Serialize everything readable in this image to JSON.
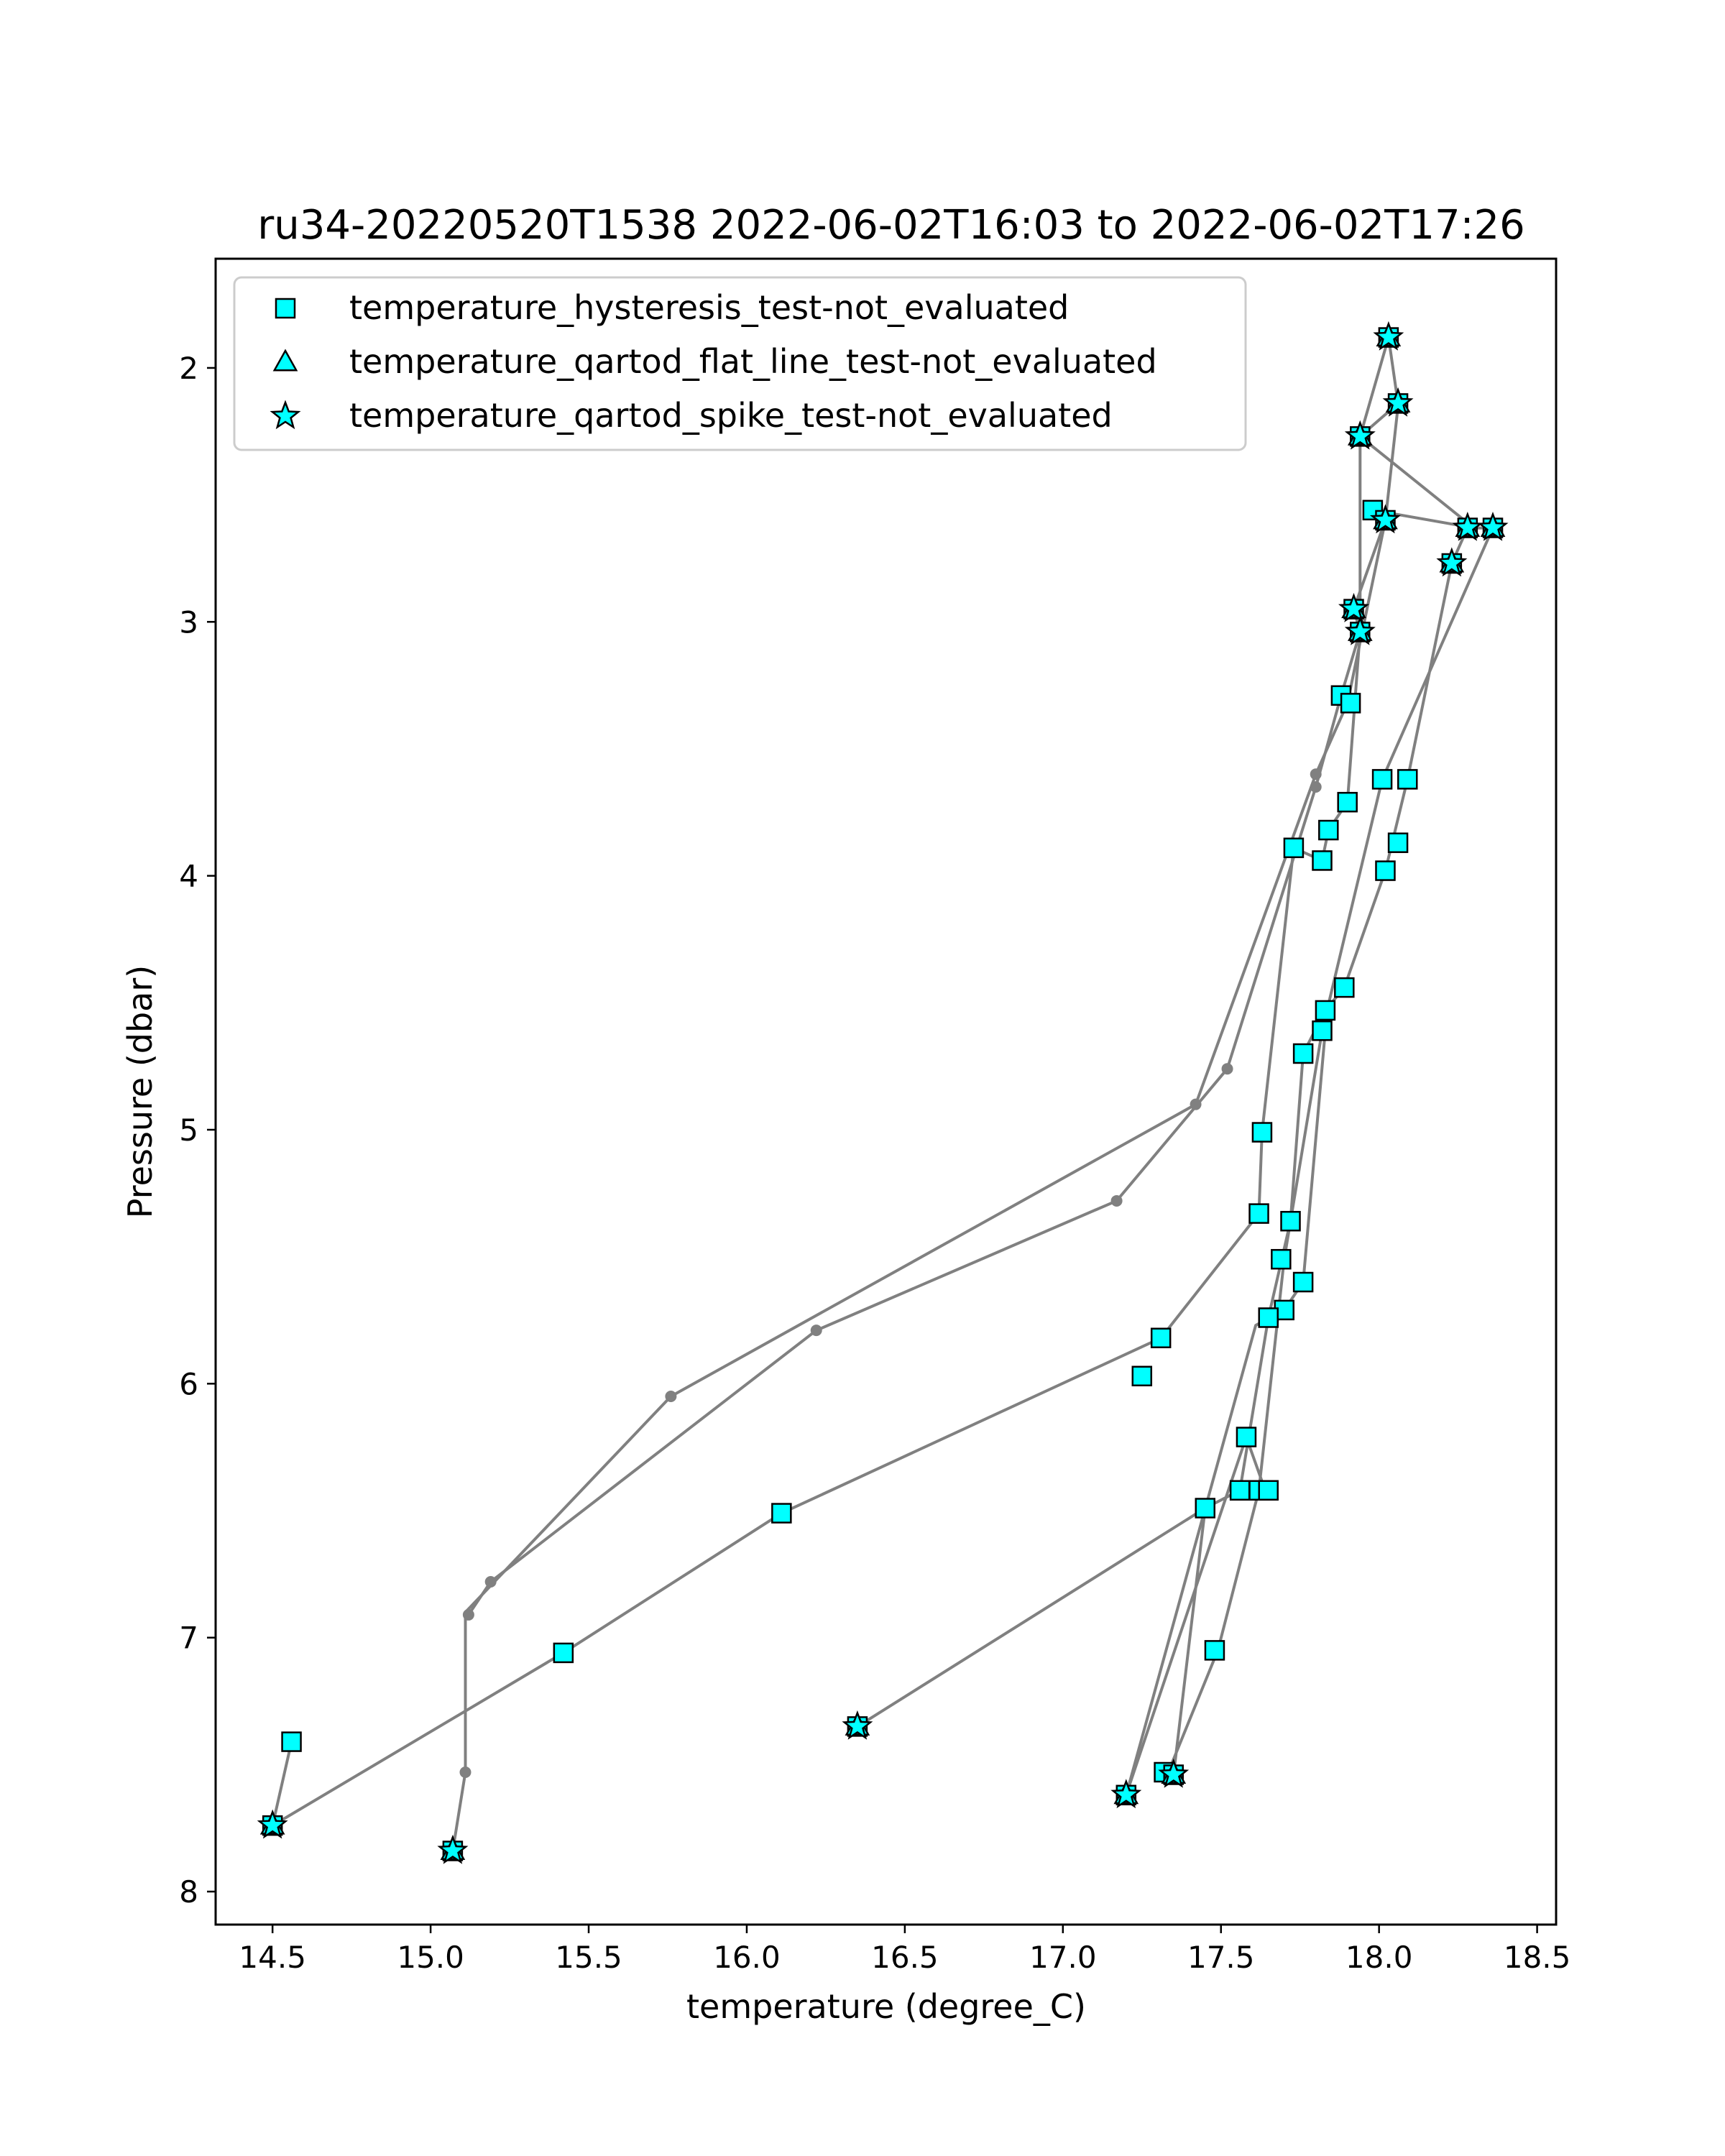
{
  "chart_data": {
    "type": "scatter",
    "title": "ru34-20220520T1538 2022-06-02T16:03 to 2022-06-02T17:26",
    "xlabel": "temperature (degree_C)",
    "ylabel": "Pressure (dbar)",
    "xlim": [
      14.32,
      18.56
    ],
    "ylim": [
      8.13,
      1.57
    ],
    "y_inverted": true,
    "xticks": [
      "14.5",
      "15.0",
      "15.5",
      "16.0",
      "16.5",
      "17.0",
      "17.5",
      "18.0",
      "18.5"
    ],
    "xtick_values": [
      14.5,
      15.0,
      15.5,
      16.0,
      16.5,
      17.0,
      17.5,
      18.0,
      18.5
    ],
    "yticks": [
      "2",
      "3",
      "4",
      "5",
      "6",
      "7",
      "8"
    ],
    "ytick_values": [
      2,
      3,
      4,
      5,
      6,
      7,
      8
    ],
    "grid": false,
    "legend_position": "top-left",
    "colors": {
      "line": "#808080",
      "marker_fill": "#00ffff",
      "marker_edge": "#000000",
      "frame": "#000000"
    },
    "profiles": [
      {
        "points": [
          [
            18.03,
            1.88
          ],
          [
            18.06,
            2.14
          ],
          [
            17.94,
            2.27
          ],
          [
            18.3,
            2.63
          ],
          [
            17.98,
            2.56
          ],
          [
            18.02,
            2.6
          ],
          [
            17.9,
            3.32
          ],
          [
            17.8,
            3.6
          ],
          [
            17.42,
            4.9
          ],
          [
            15.76,
            6.05
          ],
          [
            15.11,
            6.9
          ],
          [
            15.11,
            7.53
          ],
          [
            15.07,
            7.84
          ]
        ]
      },
      {
        "points": [
          [
            17.35,
            7.54
          ],
          [
            17.45,
            6.49
          ],
          [
            17.56,
            6.42
          ],
          [
            17.65,
            5.74
          ],
          [
            17.72,
            5.36
          ],
          [
            17.76,
            4.7
          ],
          [
            17.83,
            4.53
          ],
          [
            17.89,
            4.44
          ],
          [
            18.02,
            3.98
          ],
          [
            18.09,
            3.62
          ],
          [
            18.23,
            2.77
          ],
          [
            18.28,
            2.63
          ],
          [
            18.36,
            2.63
          ],
          [
            18.01,
            3.62
          ],
          [
            17.82,
            4.61
          ],
          [
            17.7,
            5.51
          ],
          [
            17.62,
            6.42
          ],
          [
            17.49,
            7.05
          ],
          [
            17.33,
            7.54
          ]
        ]
      },
      {
        "points": [
          [
            18.06,
            2.15
          ],
          [
            18.02,
            2.6
          ],
          [
            17.92,
            2.95
          ],
          [
            17.94,
            3.04
          ],
          [
            17.88,
            3.29
          ],
          [
            17.8,
            3.65
          ],
          [
            17.52,
            4.76
          ],
          [
            17.17,
            5.28
          ],
          [
            16.22,
            5.79
          ],
          [
            15.19,
            6.78
          ],
          [
            15.12,
            6.91
          ]
        ]
      },
      {
        "points": [
          [
            14.5,
            7.74
          ],
          [
            15.42,
            7.06
          ],
          [
            16.11,
            6.51
          ],
          [
            17.31,
            5.82
          ],
          [
            17.62,
            5.33
          ],
          [
            17.63,
            5.01
          ],
          [
            17.73,
            3.89
          ],
          [
            17.82,
            3.94
          ],
          [
            17.84,
            3.82
          ],
          [
            17.9,
            3.71
          ],
          [
            17.94,
            3.04
          ],
          [
            17.94,
            2.27
          ],
          [
            18.03,
            1.88
          ]
        ]
      },
      {
        "points": [
          [
            14.56,
            7.41
          ],
          [
            14.5,
            7.74
          ]
        ]
      },
      {
        "points": [
          [
            16.35,
            7.35
          ],
          [
            17.45,
            6.49
          ]
        ]
      },
      {
        "points": [
          [
            17.2,
            7.62
          ],
          [
            17.58,
            6.21
          ],
          [
            17.64,
            6.42
          ]
        ]
      },
      {
        "points": [
          [
            17.2,
            7.62
          ],
          [
            17.61,
            5.77
          ],
          [
            17.7,
            5.71
          ],
          [
            17.76,
            5.6
          ],
          [
            17.83,
            4.61
          ]
        ]
      }
    ],
    "series": [
      {
        "name": "temperature_hysteresis_test-not_evaluated",
        "marker": "square",
        "points": [
          [
            14.56,
            7.41
          ],
          [
            14.5,
            7.74
          ],
          [
            15.42,
            7.06
          ],
          [
            16.11,
            6.51
          ],
          [
            17.25,
            5.97
          ],
          [
            17.31,
            5.82
          ],
          [
            17.62,
            5.33
          ],
          [
            17.63,
            5.01
          ],
          [
            17.73,
            3.89
          ],
          [
            17.82,
            3.94
          ],
          [
            17.84,
            3.82
          ],
          [
            17.9,
            3.71
          ],
          [
            17.88,
            3.29
          ],
          [
            17.91,
            3.32
          ],
          [
            17.98,
            2.56
          ],
          [
            18.01,
            3.62
          ],
          [
            18.09,
            3.62
          ],
          [
            18.06,
            3.87
          ],
          [
            18.02,
            3.98
          ],
          [
            17.89,
            4.44
          ],
          [
            17.83,
            4.53
          ],
          [
            17.82,
            4.61
          ],
          [
            17.76,
            4.7
          ],
          [
            17.72,
            5.36
          ],
          [
            17.69,
            5.51
          ],
          [
            17.76,
            5.6
          ],
          [
            17.7,
            5.71
          ],
          [
            17.65,
            5.74
          ],
          [
            17.58,
            6.21
          ],
          [
            17.56,
            6.42
          ],
          [
            17.62,
            6.42
          ],
          [
            17.65,
            6.42
          ],
          [
            17.45,
            6.49
          ],
          [
            17.48,
            7.05
          ],
          [
            17.32,
            7.53
          ],
          [
            17.2,
            7.62
          ],
          [
            17.35,
            7.54
          ],
          [
            16.35,
            7.35
          ],
          [
            15.07,
            7.84
          ],
          [
            18.03,
            1.88
          ],
          [
            18.06,
            2.14
          ],
          [
            17.94,
            2.27
          ],
          [
            18.02,
            2.6
          ],
          [
            18.28,
            2.63
          ],
          [
            18.36,
            2.63
          ],
          [
            18.23,
            2.77
          ],
          [
            17.92,
            2.95
          ],
          [
            17.94,
            3.04
          ]
        ]
      },
      {
        "name": "temperature_qartod_flat_line_test-not_evaluated",
        "marker": "triangle",
        "points": [
          [
            18.03,
            1.88
          ],
          [
            18.06,
            2.14
          ],
          [
            17.94,
            2.27
          ],
          [
            18.02,
            2.6
          ],
          [
            18.28,
            2.63
          ],
          [
            18.36,
            2.63
          ],
          [
            18.23,
            2.77
          ],
          [
            17.92,
            2.95
          ],
          [
            17.94,
            3.04
          ],
          [
            16.35,
            7.35
          ],
          [
            14.5,
            7.74
          ],
          [
            15.07,
            7.84
          ],
          [
            17.2,
            7.62
          ],
          [
            17.35,
            7.54
          ]
        ]
      },
      {
        "name": "temperature_qartod_spike_test-not_evaluated",
        "marker": "star",
        "points": [
          [
            18.03,
            1.88
          ],
          [
            18.06,
            2.14
          ],
          [
            17.94,
            2.27
          ],
          [
            18.02,
            2.6
          ],
          [
            18.28,
            2.63
          ],
          [
            18.36,
            2.63
          ],
          [
            18.23,
            2.77
          ],
          [
            17.92,
            2.95
          ],
          [
            17.94,
            3.04
          ],
          [
            16.35,
            7.35
          ],
          [
            14.5,
            7.74
          ],
          [
            15.07,
            7.84
          ],
          [
            17.2,
            7.62
          ],
          [
            17.35,
            7.54
          ]
        ]
      }
    ],
    "unflagged_points": [
      [
        17.8,
        3.6
      ],
      [
        17.8,
        3.65
      ],
      [
        17.52,
        4.76
      ],
      [
        17.42,
        4.9
      ],
      [
        17.17,
        5.28
      ],
      [
        16.22,
        5.79
      ],
      [
        15.76,
        6.05
      ],
      [
        15.19,
        6.78
      ],
      [
        15.12,
        6.91
      ],
      [
        15.11,
        7.53
      ]
    ]
  }
}
